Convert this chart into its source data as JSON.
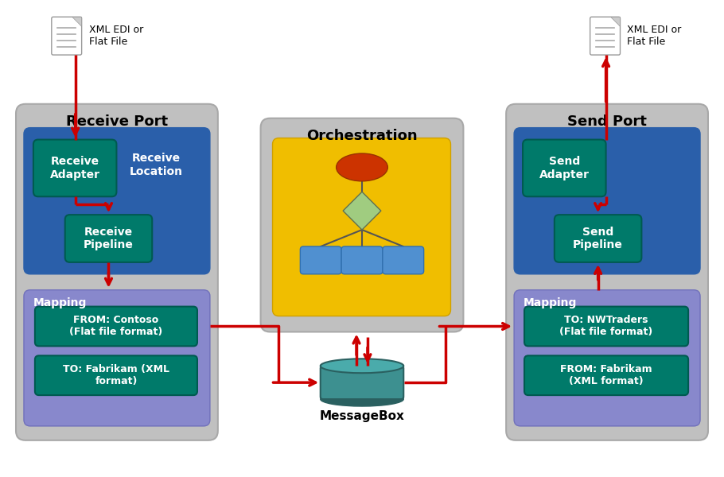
{
  "bg_color": "#ffffff",
  "gray_panel": "#c0c0c0",
  "gray_panel_ec": "#a8a8a8",
  "blue_dark": "#2a5faa",
  "teal_green": "#007a6a",
  "teal_green_ec": "#005a50",
  "purple_blue": "#8888cc",
  "purple_blue_ec": "#7070bb",
  "yellow_gold": "#f0be00",
  "yellow_gold_ec": "#d0a000",
  "cyl_body": "#3d9090",
  "cyl_top": "#4aabab",
  "cyl_bot": "#2a6060",
  "orch_line": "#555555",
  "orch_diamond": "#a0cc80",
  "orch_circle": "#cc3300",
  "orch_box": "#5090d0",
  "arrow_color": "#cc0000",
  "receive_port_title": "Receive Port",
  "orchestration_title": "Orchestration",
  "send_port_title": "Send Port",
  "receive_adapter_label": "Receive\nAdapter",
  "receive_location_label": "Receive\nLocation",
  "receive_pipeline_label": "Receive\nPipeline",
  "send_adapter_label": "Send\nAdapter",
  "send_pipeline_label": "Send\nPipeline",
  "mapping_left_title": "Mapping",
  "mapping_right_title": "Mapping",
  "from_contoso": "FROM: Contoso\n(Flat file format)",
  "to_fabrikam": "TO: Fabrikam (XML\nformat)",
  "to_nwtraders": "TO: NWTraders\n(Flat file format)",
  "from_fabrikam": "FROM: Fabrikam\n(XML format)",
  "messagebox_label": "MessageBox",
  "xml_edi_label": "XML EDI or\nFlat File"
}
